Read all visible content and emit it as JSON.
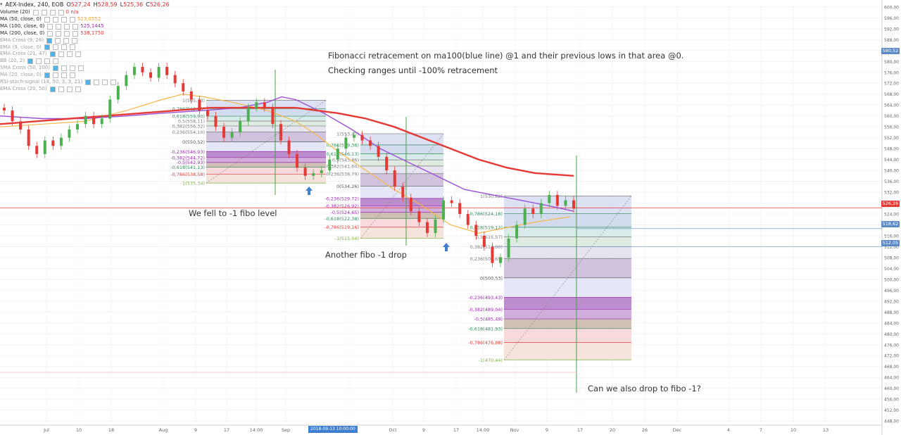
{
  "header": {
    "symbol": "AEX-Index, 240, EOB",
    "o_label": "O",
    "o_value": "527,24",
    "h_label": "H",
    "h_value": "528,59",
    "l_label": "L",
    "l_value": "525,36",
    "c_label": "C",
    "c_value": "526,26"
  },
  "indicators": [
    {
      "label": "Volume (20)",
      "value": "0  n/a",
      "color": "#d32f2f",
      "dim": false
    },
    {
      "label": "MA (50, close, 0)",
      "value": "523,0552",
      "color": "#f5a623",
      "dim": false
    },
    {
      "label": "MA (100, close, 0)",
      "value": "525,1445",
      "color": "#9c27b0",
      "dim": false
    },
    {
      "label": "MA (200, close, 0)",
      "value": "538,1750",
      "color": "#e53935",
      "dim": false
    },
    {
      "label": "EMA Cross (9, 26)",
      "value": "",
      "color": "#aaaaaa",
      "dim": true
    },
    {
      "label": "EMA (9, close, 0)",
      "value": "",
      "color": "#aaaaaa",
      "dim": true
    },
    {
      "label": "EMA Cross (21, 47)",
      "value": "",
      "color": "#aaaaaa",
      "dim": true
    },
    {
      "label": "BB (20, 2)",
      "value": "",
      "color": "#aaaaaa",
      "dim": true
    },
    {
      "label": "SMA Cross (50, 200)",
      "value": "",
      "color": "#aaaaaa",
      "dim": true
    },
    {
      "label": "MA (20, close, 0)",
      "value": "",
      "color": "#aaaaaa",
      "dim": true
    },
    {
      "label": "RSI-stoch-signal (14, 50, 3, 3, 21)",
      "value": "",
      "color": "#aaaaaa",
      "dim": true
    },
    {
      "label": "EMA Cross (20, 50)",
      "value": "",
      "color": "#aaaaaa",
      "dim": true
    }
  ],
  "annotations": {
    "note1": "Fibonacci retracement on ma100(blue line) @1 and their previous lows in that area @0.",
    "note2": "Checking ranges until -100% retracement",
    "fell": "We fell to -1 fibo level",
    "another": "Another fibo -1 drop",
    "question": "Can we also drop to fibo -1?"
  },
  "price_tags": {
    "current": "526,26",
    "level1": "518,62",
    "level2": "512,05",
    "top": "580,52"
  },
  "date_tag": "2018-09-13 10:00:00",
  "colors": {
    "up": "#4caf50",
    "down": "#e53935",
    "ma50": "#f5b74a",
    "ma100": "#9c4fd6",
    "ma200": "#e53935",
    "grid": "#f2f2f2",
    "axis_text": "#666666",
    "price_line": "#e53935",
    "fib_band1": "#cfd4ee",
    "fib_band2": "#c9b8d8",
    "fib_neg_dark": "#b57ac6",
    "fib_neg_pink": "#f7c8cc",
    "fib_neg_green": "#e6f2d6"
  },
  "chart_data": {
    "type": "candlestick",
    "x_ticks": [
      "Jul",
      "10",
      "18",
      "Aug",
      "9",
      "17",
      "14:00",
      "Sep",
      "9",
      "Oct",
      "9",
      "17",
      "14:00",
      "Nov",
      "9",
      "17",
      "20",
      "26",
      "Dec",
      "4",
      "7",
      "10",
      "13"
    ],
    "y_ticks": [
      "600,00",
      "596,00",
      "592,00",
      "588,00",
      "584,00",
      "580,00",
      "576,00",
      "572,00",
      "568,00",
      "564,00",
      "560,00",
      "556,00",
      "552,00",
      "548,00",
      "544,00",
      "540,00",
      "536,00",
      "532,00",
      "528,00",
      "524,00",
      "520,00",
      "516,00",
      "512,00",
      "508,00",
      "504,00",
      "500,00",
      "496,00",
      "492,00",
      "488,00",
      "484,00",
      "480,00",
      "476,00",
      "472,00",
      "468,00",
      "464,00",
      "460,00",
      "456,00",
      "452,00",
      "448,00"
    ],
    "ylim": [
      447,
      601
    ],
    "ohlc_close": [
      562,
      558,
      555,
      549,
      546,
      551,
      549,
      552,
      555,
      557,
      560,
      557,
      559,
      566,
      571,
      575,
      578,
      576,
      574,
      578,
      575,
      572,
      569,
      566,
      562,
      560,
      556,
      552,
      554,
      558,
      563,
      565,
      563,
      557,
      551,
      546,
      541,
      538,
      539,
      540,
      544,
      548,
      552,
      553,
      551,
      549,
      545,
      540,
      534,
      530,
      525,
      521,
      517,
      522,
      529,
      528,
      524,
      520,
      516,
      512,
      506,
      508,
      515,
      520,
      526,
      524,
      528,
      531,
      527,
      529,
      526
    ],
    "ma_series": [
      {
        "name": "MA (50, close, 0)",
        "values": [
          556,
          557,
          558,
          562,
          566,
          568,
          567,
          565,
          562,
          558,
          553,
          547,
          540,
          533,
          527,
          520,
          517,
          519,
          521,
          523
        ]
      },
      {
        "name": "MA (100, close, 0)",
        "values": [
          560,
          559,
          559,
          560,
          561,
          562,
          563,
          565,
          567,
          566,
          561,
          555,
          548,
          543,
          538,
          533,
          531,
          529,
          527,
          525
        ]
      },
      {
        "name": "MA (200, close, 0)",
        "values": [
          557,
          558,
          559,
          560,
          561,
          562,
          563,
          563,
          563,
          562,
          561,
          559,
          556,
          552,
          548,
          544,
          541,
          539,
          538
        ]
      }
    ],
    "fib_sets": [
      {
        "levels": [
          {
            "label": "1(565,73)",
            "price": 565.73
          },
          {
            "label": "0,786(562,68)",
            "price": 562.68
          },
          {
            "label": "0,618(559,90)",
            "price": 559.9
          },
          {
            "label": "0,5(558,11)",
            "price": 558.11
          },
          {
            "label": "0,382(556,32)",
            "price": 556.32
          },
          {
            "label": "0,236(554,10)",
            "price": 554.1
          },
          {
            "label": "0(550,52)",
            "price": 550.52
          },
          {
            "label": "-0,236(546,93)",
            "price": 546.93
          },
          {
            "label": "-0,382(544,72)",
            "price": 544.72
          },
          {
            "label": "-0,5(542,93)",
            "price": 542.93
          },
          {
            "label": "-0,618(541,13)",
            "price": 541.13
          },
          {
            "label": "-0,786(538,58)",
            "price": 538.58
          },
          {
            "label": "-1(535,34)",
            "price": 535.34
          }
        ]
      },
      {
        "levels": [
          {
            "label": "1(553,47)",
            "price": 553.47
          },
          {
            "label": "0,786(549,36)",
            "price": 549.36
          },
          {
            "label": "0,618(546,13)",
            "price": 546.13
          },
          {
            "label": "0,5(543,86)",
            "price": 543.86
          },
          {
            "label": "0,382(541,60)",
            "price": 541.6
          },
          {
            "label": "0,236(538,79)",
            "price": 538.79
          },
          {
            "label": "0(534,26)",
            "price": 534.26
          },
          {
            "label": "-0,236(529,72)",
            "price": 529.72
          },
          {
            "label": "-0,382(526,92)",
            "price": 526.92
          },
          {
            "label": "-0,5(524,65)",
            "price": 524.65
          },
          {
            "label": "-0,618(522,38)",
            "price": 522.38
          },
          {
            "label": "-0,786(519,16)",
            "price": 519.16
          },
          {
            "label": "-1(515,04)",
            "price": 515.04
          }
        ]
      },
      {
        "levels": [
          {
            "label": "1(530,62)",
            "price": 530.62
          },
          {
            "label": "0,786(524,18)",
            "price": 524.18
          },
          {
            "label": "0,618(519,12)",
            "price": 519.12
          },
          {
            "label": "0,5(515,57)",
            "price": 515.57
          },
          {
            "label": "0,382(512,00)",
            "price": 512.0
          },
          {
            "label": "0,236(507,65)",
            "price": 507.65
          },
          {
            "label": "0(500,53)",
            "price": 500.53
          },
          {
            "label": "-0,236(493,43)",
            "price": 493.43
          },
          {
            "label": "-0,382(489,04)",
            "price": 489.04
          },
          {
            "label": "-0,5(485,49)",
            "price": 485.49
          },
          {
            "label": "-0,618(481,93)",
            "price": 481.93
          },
          {
            "label": "-0,786(476,88)",
            "price": 476.88
          },
          {
            "label": "-1(470,44)",
            "price": 470.44
          }
        ]
      }
    ]
  }
}
